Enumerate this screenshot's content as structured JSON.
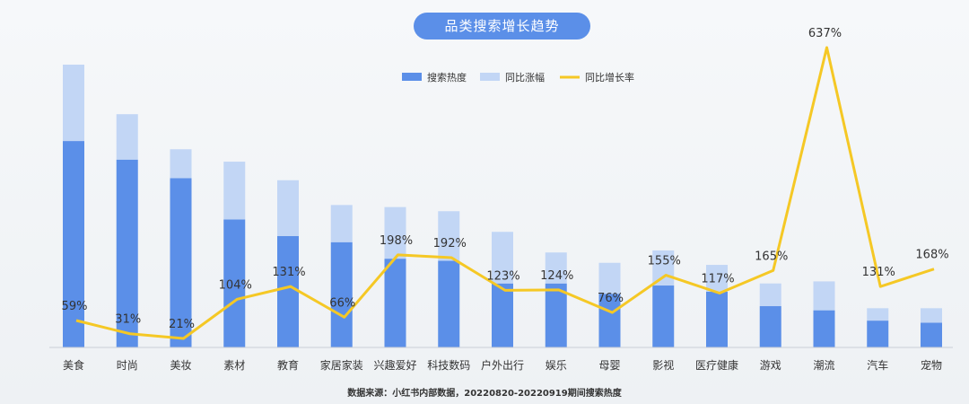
{
  "chart_data": {
    "type": "bar",
    "title": "品类搜索增长趋势",
    "categories": [
      "美食",
      "时尚",
      "美妆",
      "素材",
      "教育",
      "家居家装",
      "兴趣爱好",
      "科技数码",
      "户外出行",
      "娱乐",
      "母婴",
      "影视",
      "医疗健康",
      "游戏",
      "潮流",
      "汽车",
      "宠物"
    ],
    "series": [
      {
        "name": "搜索热度",
        "kind": "bar",
        "color": "#5b8fe8",
        "stack": "s",
        "values": [
          100,
          91,
          82,
          62,
          54,
          51,
          43,
          42,
          31,
          31,
          26,
          30,
          27,
          20,
          18,
          13,
          12
        ]
      },
      {
        "name": "同比涨幅",
        "kind": "bar",
        "color": "#c2d6f5",
        "stack": "s",
        "values": [
          37,
          22,
          14,
          28,
          27,
          18,
          25,
          24,
          25,
          15,
          15,
          17,
          13,
          11,
          14,
          6,
          7
        ]
      },
      {
        "name": "同比增长率",
        "kind": "line",
        "color": "#f5c825",
        "values": [
          59,
          31,
          21,
          104,
          131,
          66,
          198,
          192,
          123,
          124,
          76,
          155,
          117,
          165,
          637,
          131,
          168
        ],
        "labels": [
          "59%",
          "31%",
          "21%",
          "104%",
          "131%",
          "66%",
          "198%",
          "192%",
          "123%",
          "124%",
          "76%",
          "155%",
          "117%",
          "165%",
          "637%",
          "131%",
          "168%"
        ]
      }
    ],
    "legend_position": "top-center",
    "grid": false
  },
  "footer": {
    "source": "数据来源：小红书内部数据，20220820-20220919期间搜索热度"
  }
}
